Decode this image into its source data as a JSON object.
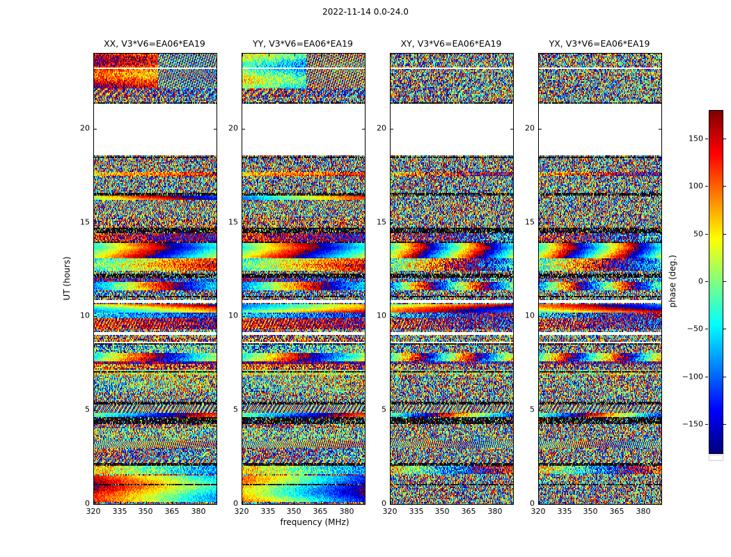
{
  "chart_data": {
    "type": "heatmap",
    "layout": "1x4 panel grid of phase waterfall spectrograms with shared axes and a right-hand colorbar",
    "title": "2022-11-14 0.0-24.0",
    "xlabel": "frequency (MHz)",
    "ylabel": "UT (hours)",
    "xlim": [
      320,
      390
    ],
    "ylim": [
      0,
      24
    ],
    "xticks": [
      320,
      335,
      350,
      365,
      380
    ],
    "yticks": [
      0,
      5,
      10,
      15,
      20
    ],
    "panels": [
      {
        "title": "XX, V3*V6=EA06*EA19",
        "polarization": "XX",
        "correlation": "V3*V6",
        "baseline": "EA06*EA19"
      },
      {
        "title": "YY, V3*V6=EA06*EA19",
        "polarization": "YY",
        "correlation": "V3*V6",
        "baseline": "EA06*EA19"
      },
      {
        "title": "XY, V3*V6=EA06*EA19",
        "polarization": "XY",
        "correlation": "V3*V6",
        "baseline": "EA06*EA19"
      },
      {
        "title": "YX, V3*V6=EA06*EA19",
        "polarization": "YX",
        "correlation": "V3*V6",
        "baseline": "EA06*EA19"
      }
    ],
    "value": {
      "label": "phase (deg.)",
      "lim": [
        -180,
        180
      ],
      "ticks": [
        150,
        100,
        50,
        0,
        -50,
        -100,
        -150
      ],
      "colormap": "jet",
      "flagged_color": "#ffffff"
    },
    "values_description": "Interferometric visibility phase versus frequency (x) and UT time (y). The pixels are dense pseudo-random wrapped-phase speckle spanning the full -180..180 deg range, organized into thin horizontal time stripes; some stripes are coherent slow rainbow gradients, some are fully flagged (white), and some are near-black low-signal rows. Stripe/flag structure is common to all four panels.",
    "no_data_gaps_ut": [
      [
        18.55,
        21.32
      ],
      [
        10.72,
        10.86
      ],
      [
        9.03,
        9.15
      ],
      [
        8.55,
        8.66
      ]
    ],
    "dark_flagged_rows_ut": [
      [
        21.33,
        21.44
      ],
      [
        18.4,
        18.52
      ],
      [
        16.45,
        16.56
      ],
      [
        14.45,
        14.75
      ],
      [
        12.07,
        12.3
      ],
      [
        7.0,
        7.12
      ],
      [
        5.3,
        5.44
      ],
      [
        4.3,
        4.62
      ],
      [
        2.05,
        2.18
      ]
    ],
    "coherent_features": [
      {
        "panel": 0,
        "ut": [
          22.15,
          24.0
        ],
        "phase0_deg": 140,
        "slope_deg_per_MHz": -1.1,
        "noise_deg": 55,
        "wobble_deg": 40,
        "moire": true,
        "hue": "red-orange with fine moire at high-frequency side"
      },
      {
        "panel": 1,
        "ut": [
          22.15,
          24.0
        ],
        "phase0_deg": 15,
        "slope_deg_per_MHz": -1.9,
        "noise_deg": 55,
        "wobble_deg": 40,
        "moire": true,
        "hue": "green-cyan-blue with fine moire at high-frequency side"
      },
      {
        "panel": 0,
        "ut": [
          0.12,
          1.55
        ],
        "phase0_deg": 150,
        "slope_deg_per_MHz": -3.0,
        "noise_deg": 30,
        "wobble_deg": 28,
        "moire": false,
        "hue": "smooth red-orange-yellow gradient across frequency"
      },
      {
        "panel": 1,
        "ut": [
          0.12,
          1.55
        ],
        "phase0_deg": 80,
        "slope_deg_per_MHz": -3.3,
        "noise_deg": 30,
        "wobble_deg": 28,
        "moire": false,
        "hue": "smooth yellow-green-cyan-blue gradient across frequency"
      },
      {
        "panel": 0,
        "ut": [
          10.18,
          10.62
        ],
        "phase0_deg": 0,
        "slope_deg_per_MHz": 2.4,
        "noise_deg": 22,
        "wobble_deg": 95,
        "moire": false,
        "hue": "slow rainbow waves"
      },
      {
        "panel": 1,
        "ut": [
          10.18,
          10.62
        ],
        "phase0_deg": 0,
        "slope_deg_per_MHz": 2.4,
        "noise_deg": 22,
        "wobble_deg": 95,
        "moire": false,
        "hue": "slow rainbow waves"
      },
      {
        "panel": 2,
        "ut": [
          10.18,
          10.62
        ],
        "phase0_deg": 0,
        "slope_deg_per_MHz": 2.4,
        "noise_deg": 22,
        "wobble_deg": 95,
        "moire": false,
        "hue": "slow rainbow waves"
      },
      {
        "panel": 3,
        "ut": [
          10.18,
          10.62
        ],
        "phase0_deg": 0,
        "slope_deg_per_MHz": 2.4,
        "noise_deg": 22,
        "wobble_deg": 95,
        "moire": false,
        "hue": "slow rainbow waves"
      },
      {
        "panel": 0,
        "ut": [
          16.2,
          16.44
        ],
        "phase0_deg": -20,
        "slope_deg_per_MHz": 3.1,
        "noise_deg": 25,
        "wobble_deg": 80,
        "moire": false,
        "hue": "rainbow ripple"
      },
      {
        "panel": 1,
        "ut": [
          16.2,
          16.44
        ],
        "phase0_deg": -20,
        "slope_deg_per_MHz": 3.1,
        "noise_deg": 25,
        "wobble_deg": 80,
        "moire": false,
        "hue": "rainbow ripple"
      }
    ]
  }
}
